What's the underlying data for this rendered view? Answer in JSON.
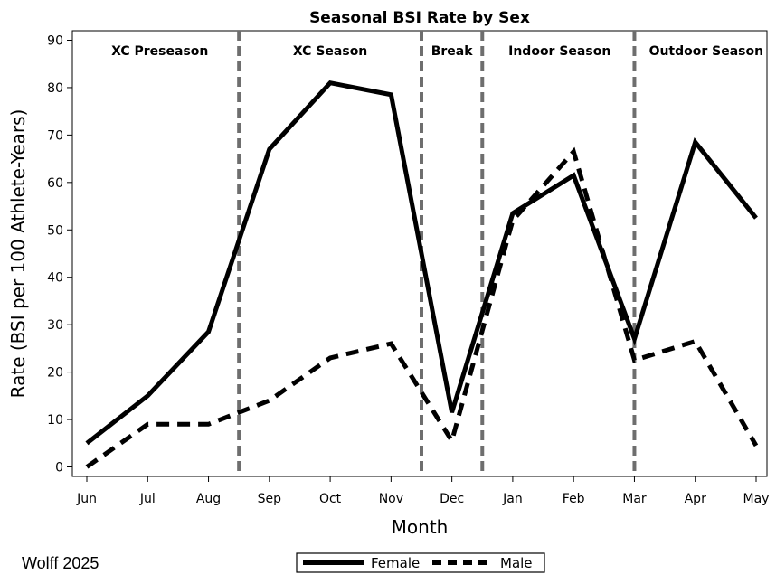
{
  "credit": "Wolff 2025",
  "chart_data": {
    "type": "line",
    "title": "Seasonal BSI Rate by Sex",
    "xlabel": "Month",
    "ylabel": "Rate (BSI per 100 Athlete-Years)",
    "categories": [
      "Jun",
      "Jul",
      "Aug",
      "Sep",
      "Oct",
      "Nov",
      "Dec",
      "Jan",
      "Feb",
      "Mar",
      "Apr",
      "May"
    ],
    "ylim": [
      -2,
      92
    ],
    "yticks": [
      0,
      10,
      20,
      30,
      40,
      50,
      60,
      70,
      80,
      90
    ],
    "grid": false,
    "series": [
      {
        "name": "Female",
        "style": "solid",
        "color": "#000000",
        "values": [
          5,
          15,
          28.5,
          67,
          81,
          78.5,
          11.5,
          53.5,
          61.5,
          27,
          68.5,
          52.5
        ]
      },
      {
        "name": "Male",
        "style": "dashed",
        "color": "#000000",
        "values": [
          0,
          9,
          9,
          14,
          23,
          26,
          5.5,
          52,
          66.5,
          22.5,
          26.5,
          4.5
        ]
      }
    ],
    "season_dividers": [
      2.5,
      5.5,
      6.5,
      9.0
    ],
    "divider_color": "#6e6e6e",
    "seasons": [
      {
        "label": "XC Preseason",
        "center": 1.2
      },
      {
        "label": "XC Season",
        "center": 4.0
      },
      {
        "label": "Break",
        "center": 6.0
      },
      {
        "label": "Indoor Season",
        "center": 7.77
      },
      {
        "label": "Outdoor Season",
        "center": 10.18
      }
    ],
    "legend": {
      "placement": "bottom",
      "entries": [
        "Female",
        "Male"
      ]
    }
  }
}
